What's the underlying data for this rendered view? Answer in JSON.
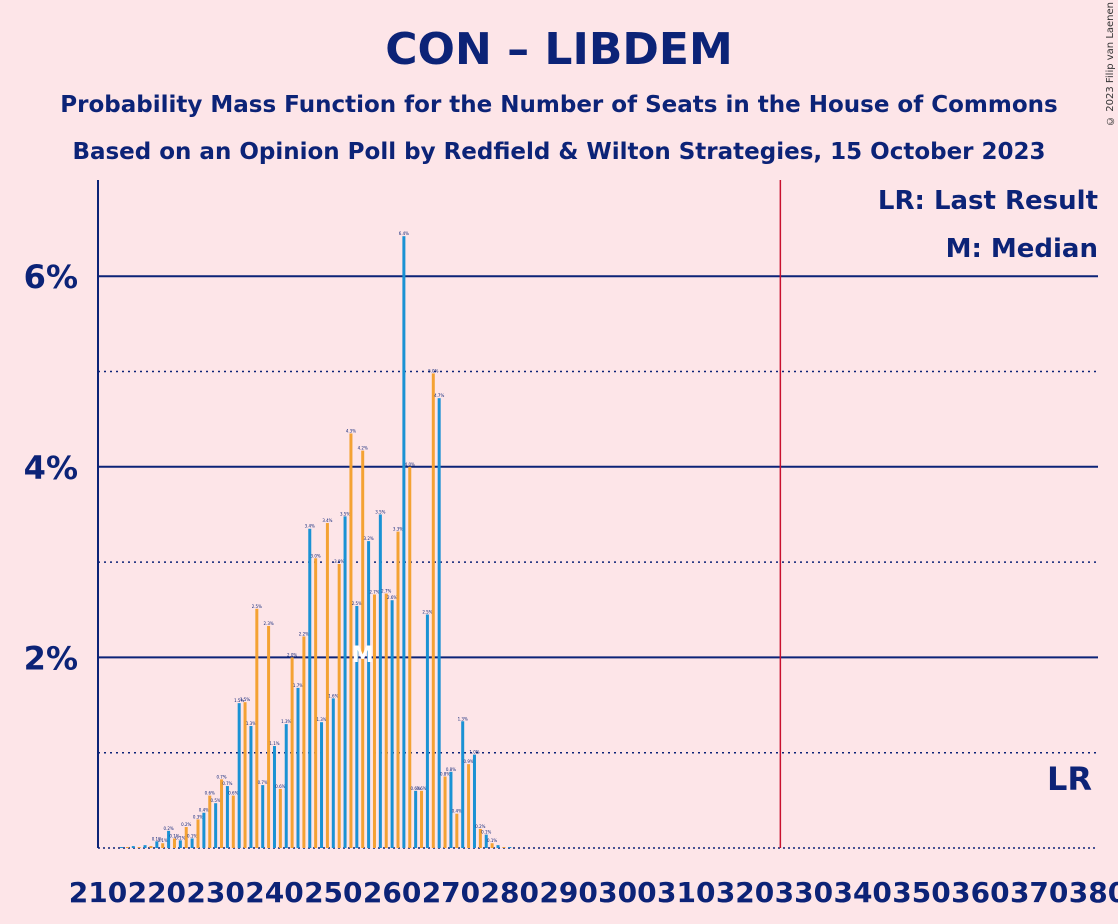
{
  "title": "CON – LIBDEM",
  "subtitle1": "Probability Mass Function for the Number of Seats in the House of Commons",
  "subtitle2": "Based on an Opinion Poll by Redfield & Wilton Strategies, 15 October 2023",
  "copyright": "© 2023 Filip van Laenen",
  "legend": {
    "last_result": "LR: Last Result",
    "median": "M: Median"
  },
  "lr_label": "LR",
  "median_label": "M",
  "colors": {
    "background": "#fde5e8",
    "text": "#0c2377",
    "series_a": "#f4a233",
    "series_b": "#1a92d4",
    "last_result_line": "#c8102e"
  },
  "chart_data": {
    "type": "bar",
    "x_range": [
      210,
      380
    ],
    "ylim": [
      0,
      7
    ],
    "y_ticks": [
      "2%",
      "4%",
      "6%"
    ],
    "y_tick_values": [
      2,
      4,
      6
    ],
    "y_minor_gridlines": [
      1,
      3,
      5
    ],
    "x_ticks": [
      "210",
      "220",
      "230",
      "240",
      "250",
      "260",
      "270",
      "280",
      "290",
      "300",
      "310",
      "320",
      "330",
      "340",
      "350",
      "360",
      "370",
      "380"
    ],
    "x_tick_values": [
      210,
      220,
      230,
      240,
      250,
      260,
      270,
      280,
      290,
      300,
      310,
      320,
      330,
      340,
      350,
      360,
      370,
      380
    ],
    "last_result": 326,
    "median": 255,
    "series": [
      {
        "x": [
          214,
          215,
          216,
          217,
          218,
          219,
          220,
          221,
          222,
          223,
          224,
          225,
          226,
          227,
          228,
          229,
          230,
          231,
          232,
          233,
          234,
          235,
          236,
          237,
          238,
          239,
          240,
          241,
          242,
          243,
          244,
          245,
          246,
          247,
          248,
          249,
          250,
          251,
          252,
          253,
          254,
          255,
          256,
          257,
          258,
          259,
          260,
          261,
          262,
          263,
          264,
          265,
          266,
          267,
          268,
          269,
          270,
          271,
          272,
          273,
          274,
          275,
          276,
          277,
          278,
          279,
          280
        ],
        "values": [
          0.01,
          0.01,
          0.02,
          0.01,
          0.03,
          0.02,
          0.07,
          0.05,
          0.18,
          0.1,
          0.08,
          0.22,
          0.1,
          0.3,
          0.37,
          0.55,
          0.47,
          0.72,
          0.65,
          0.55,
          1.52,
          1.53,
          1.28,
          2.51,
          0.66,
          2.33,
          1.07,
          0.62,
          1.3,
          2.0,
          1.68,
          2.22,
          3.35,
          3.04,
          1.32,
          3.41,
          1.57,
          2.98,
          3.48,
          4.35,
          2.54,
          4.17,
          3.22,
          2.66,
          3.5,
          2.67,
          2.6,
          3.32,
          6.42,
          4.0,
          0.6,
          0.6,
          2.45,
          4.98,
          4.72,
          0.75,
          0.8,
          0.36,
          1.33,
          0.88,
          0.98,
          0.2,
          0.14,
          0.05,
          0.03,
          0.01,
          0.01
        ]
      }
    ]
  }
}
